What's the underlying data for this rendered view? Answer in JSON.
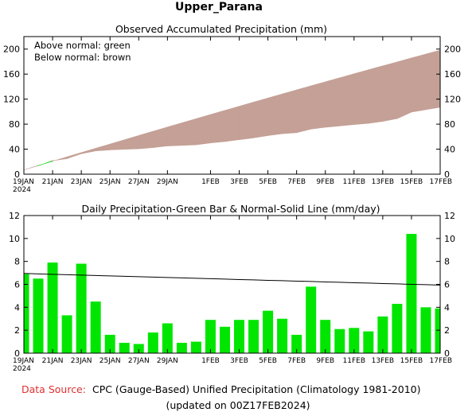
{
  "header": {
    "title": "Upper_Parana"
  },
  "legend_note": {
    "line1": "Above normal: green",
    "line2": "Below normal: brown"
  },
  "footer": {
    "source_label": "Data Source:",
    "source_text": "CPC (Gauge-Based) Unified Precipitation (Climatology 1981-2010)",
    "updated": "(updated on 00Z17FEB2024)"
  },
  "colors": {
    "above_normal": "#00cc00",
    "below_normal": "#c4a096",
    "bar": "#00e600",
    "source_label": "#e03030"
  },
  "x_tick_labels": [
    "19JAN",
    "21JAN",
    "23JAN",
    "25JAN",
    "27JAN",
    "29JAN",
    "1FEB",
    "3FEB",
    "5FEB",
    "7FEB",
    "9FEB",
    "11FEB",
    "13FEB",
    "15FEB",
    "17FEB"
  ],
  "x_tick_day_index": [
    0,
    2,
    4,
    6,
    8,
    10,
    13,
    15,
    17,
    19,
    21,
    23,
    25,
    27,
    29
  ],
  "x_year_label": "2024",
  "chart_data": [
    {
      "type": "area",
      "title": "Observed Accumulated Precipitation (mm)",
      "x_start": "19JAN2024",
      "x_end": "17FEB2024",
      "ylim": [
        0,
        220
      ],
      "yticks": [
        0,
        40,
        80,
        120,
        160,
        200
      ],
      "series": [
        {
          "name": "Observed",
          "values": [
            7,
            13.5,
            21.5,
            24.8,
            32.7,
            37.2,
            38.8,
            39.8,
            40.6,
            42.5,
            45.1,
            46.0,
            47.0,
            49.9,
            52.2,
            55.1,
            58.0,
            61.7,
            64.7,
            66.3,
            72.1,
            75.0,
            77.2,
            79.4,
            81.3,
            84.5,
            88.8,
            99.2,
            103.2,
            107.0
          ]
        },
        {
          "name": "Normal",
          "values": [
            7,
            13.9,
            20.8,
            27.7,
            34.6,
            41.4,
            48.2,
            55.0,
            61.8,
            68.6,
            75.3,
            82.0,
            88.7,
            95.4,
            102.0,
            108.6,
            115.2,
            121.8,
            128.3,
            134.8,
            141.3,
            147.7,
            154.1,
            160.5,
            166.9,
            173.2,
            179.5,
            185.8,
            192.0,
            198.2
          ]
        }
      ]
    },
    {
      "type": "bar",
      "title": "Daily Precipitation-Green Bar & Normal-Solid Line (mm/day)",
      "x_start": "19JAN2024",
      "x_end": "17FEB2024",
      "ylim": [
        0,
        12
      ],
      "yticks": [
        0,
        2,
        4,
        6,
        8,
        10,
        12
      ],
      "series": [
        {
          "name": "Daily Precipitation",
          "values": [
            6.9,
            6.5,
            7.9,
            3.3,
            7.8,
            4.5,
            1.6,
            0.9,
            0.8,
            1.8,
            2.6,
            0.9,
            1.0,
            2.9,
            2.3,
            2.9,
            2.9,
            3.7,
            3.0,
            1.6,
            5.8,
            2.9,
            2.1,
            2.2,
            1.9,
            3.2,
            4.3,
            10.4,
            4.0,
            3.9
          ]
        },
        {
          "name": "Normal",
          "values": [
            6.95,
            6.91,
            6.88,
            6.84,
            6.81,
            6.77,
            6.74,
            6.7,
            6.67,
            6.63,
            6.6,
            6.56,
            6.53,
            6.49,
            6.46,
            6.42,
            6.39,
            6.35,
            6.32,
            6.28,
            6.25,
            6.21,
            6.18,
            6.14,
            6.11,
            6.07,
            6.04,
            6.0,
            5.97,
            5.93
          ]
        }
      ]
    }
  ]
}
